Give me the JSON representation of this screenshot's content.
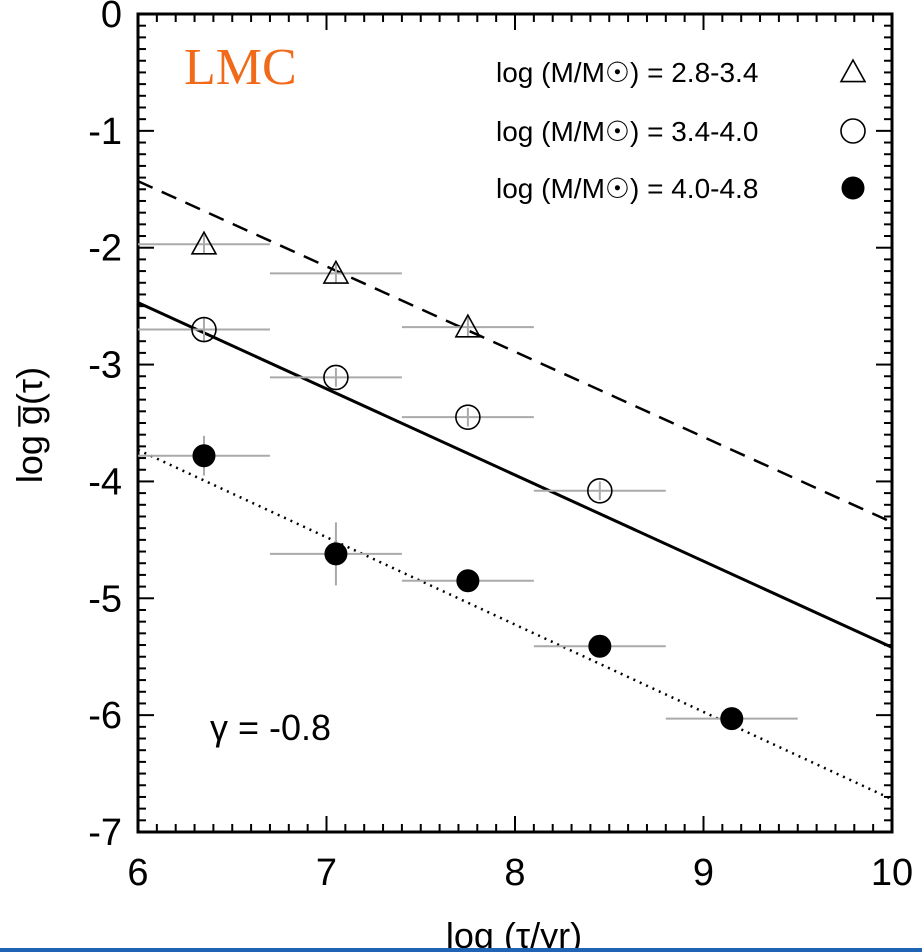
{
  "chart_data": {
    "type": "scatter",
    "title": "",
    "panel_label": "LMC",
    "panel_label_color": "#f06a1a",
    "xlabel": "log (τ/yr)",
    "ylabel": "log g̅(τ)",
    "xlim": [
      6,
      10
    ],
    "ylim": [
      -7,
      0
    ],
    "xticks": [
      "6",
      "7",
      "8",
      "9",
      "10"
    ],
    "yticks": [
      "0",
      "-1",
      "-2",
      "-3",
      "-4",
      "-5",
      "-6",
      "-7"
    ],
    "grid": false,
    "legend_position": "top-right",
    "annotation": "γ = -0.8",
    "series": [
      {
        "name": "log (M/M☉) = 2.8-3.4",
        "marker": "open-triangle",
        "x": [
          6.35,
          7.05,
          7.75
        ],
        "y": [
          -1.97,
          -2.22,
          -2.68
        ],
        "xerr": 0.35,
        "yerr": [
          0.08,
          0.08,
          0.08
        ],
        "fit": {
          "style": "dashed",
          "x": [
            6,
            10
          ],
          "y": [
            -1.43,
            -4.35
          ]
        }
      },
      {
        "name": "log (M/M☉) = 3.4-4.0",
        "marker": "open-circle",
        "x": [
          6.35,
          7.05,
          7.75,
          8.45
        ],
        "y": [
          -2.7,
          -3.11,
          -3.45,
          -4.08
        ],
        "xerr": 0.35,
        "yerr": [
          0.1,
          0.08,
          0.08,
          0.08
        ],
        "fit": {
          "style": "solid",
          "x": [
            6,
            10
          ],
          "y": [
            -2.47,
            -5.42
          ]
        }
      },
      {
        "name": "log (M/M☉) = 4.0-4.8",
        "marker": "filled-circle",
        "x": [
          6.35,
          7.05,
          7.75,
          8.45,
          9.15
        ],
        "y": [
          -3.78,
          -4.62,
          -4.85,
          -5.41,
          -6.03
        ],
        "xerr": 0.35,
        "yerr": [
          0.17,
          0.27,
          0.08,
          0.06,
          0.05
        ],
        "fit": {
          "style": "dotted",
          "x": [
            6,
            10
          ],
          "y": [
            -3.73,
            -6.72
          ]
        }
      }
    ]
  }
}
